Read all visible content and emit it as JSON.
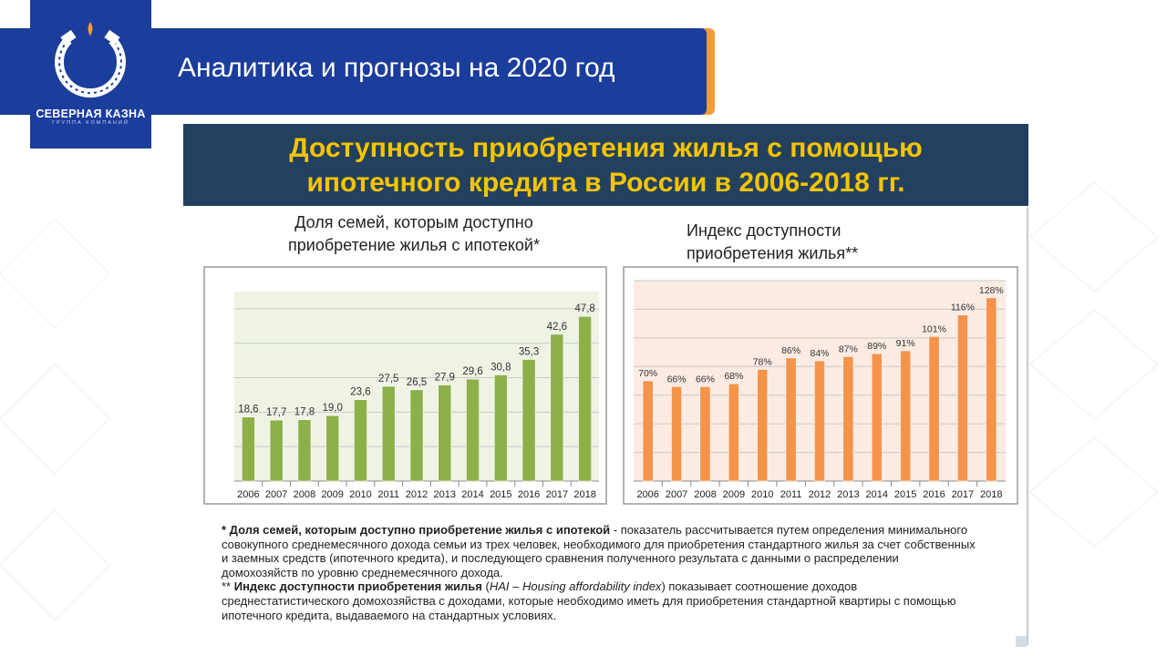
{
  "brand": {
    "name": "СЕВЕРНАЯ КАЗНА",
    "subtitle": "ГРУППА КОМПАНИЙ",
    "primary_color": "#1b3d9b",
    "accent_color": "#f39a3d"
  },
  "slide": {
    "title": "Аналитика и прогнозы на 2020 год"
  },
  "header": {
    "line1": "Доступность приобретения жилья с помощью",
    "line2": "ипотечного кредита в России в 2006-2018 гг."
  },
  "chart_left_title": {
    "line1": "Доля семей, которым доступно",
    "line2": "приобретение жилья с ипотекой*"
  },
  "chart_right_title": {
    "line1": "Индекс доступности",
    "line2": "приобретения жилья**"
  },
  "notes": {
    "n1_bold": "* Доля семей, которым доступно приобретение жилья с ипотекой",
    "n1_text": " - показатель рассчитывается путем определения минимального совокупного среднемесячного дохода семьи из трех человек, необходимого для приобретения стандартного жилья за счет собственных и заемных средств (ипотечного кредита), и последующего сравнения полученного результата с данными о распределении домохозяйств по уровню среднемесячного дохода.",
    "n2_prefix": "** ",
    "n2_bold": "Индекс доступности приобретения жилья",
    "n2_open": " (",
    "n2_italic": "HAI – Housing affordability index",
    "n2_text": ") показывает соотношение доходов среднестатистического домохозяйства с доходами, которые необходимо иметь для приобретения стандартной квартиры с помощью ипотечного кредита, выдаваемого на стандартных условиях."
  },
  "chart_data": [
    {
      "type": "bar",
      "categories": [
        "2006",
        "2007",
        "2008",
        "2009",
        "2010",
        "2011",
        "2012",
        "2013",
        "2014",
        "2015",
        "2016",
        "2017",
        "2018"
      ],
      "values": [
        18.6,
        17.7,
        17.8,
        19.0,
        23.6,
        27.5,
        26.5,
        27.9,
        29.6,
        30.8,
        35.3,
        42.6,
        47.8
      ],
      "labels": [
        "18,6",
        "17,7",
        "17,8",
        "19,0",
        "23,6",
        "27,5",
        "26,5",
        "27,9",
        "29,6",
        "30,8",
        "35,3",
        "42,6",
        "47,8"
      ],
      "ylim": [
        0,
        55
      ],
      "grid": true,
      "bar_color": "#8db04a",
      "plot_bg": "#eef3e4"
    },
    {
      "type": "bar",
      "categories": [
        "2006",
        "2007",
        "2008",
        "2009",
        "2010",
        "2011",
        "2012",
        "2013",
        "2014",
        "2015",
        "2016",
        "2017",
        "2018"
      ],
      "values": [
        70,
        66,
        66,
        68,
        78,
        86,
        84,
        87,
        89,
        91,
        101,
        116,
        128
      ],
      "labels": [
        "70%",
        "66%",
        "66%",
        "68%",
        "78%",
        "86%",
        "84%",
        "87%",
        "89%",
        "91%",
        "101%",
        "116%",
        "128%"
      ],
      "ylim": [
        0,
        140
      ],
      "grid": true,
      "bar_color": "#f4934a",
      "plot_bg": "#fbebe2"
    }
  ]
}
